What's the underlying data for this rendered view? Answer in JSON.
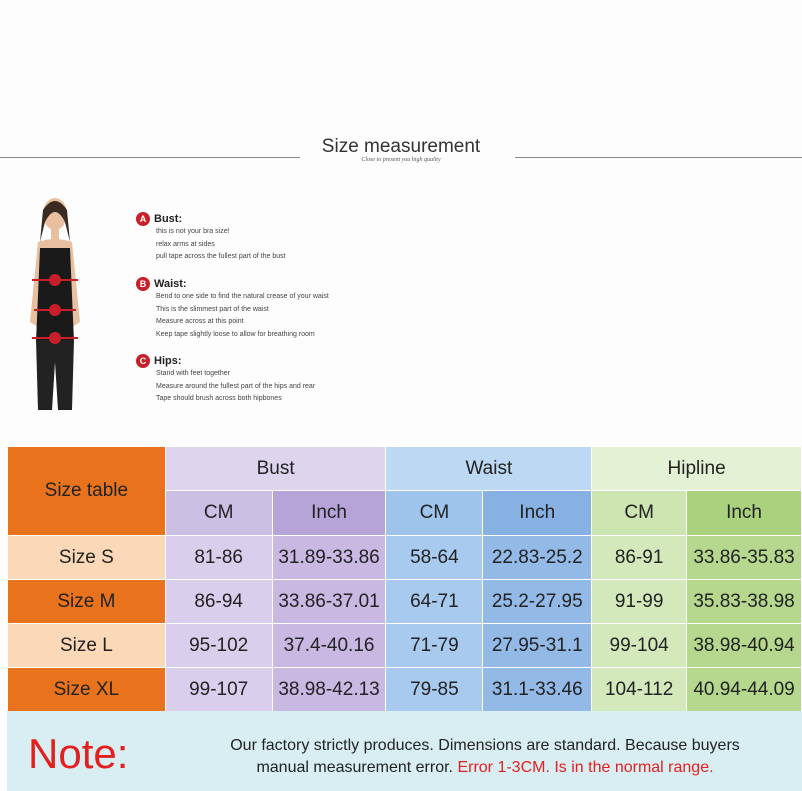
{
  "header": {
    "title": "Size measurement",
    "subtitle": "Close to present you high quality"
  },
  "guide": [
    {
      "badge": "A",
      "title": "Bust:",
      "lines": [
        "this is not your bra size!",
        "relax arms at sides",
        "pull tape across the fullest part of the bust"
      ]
    },
    {
      "badge": "B",
      "title": "Waist:",
      "lines": [
        "Bend  to one side to find the natural crease of your waist",
        "This is the slimmest part of the waist",
        "Measure across at this point",
        "Keep tape slightly loose to allow for breathing room"
      ]
    },
    {
      "badge": "C",
      "title": "Hips:",
      "lines": [
        "Stand with feet together",
        "Measure around the fullest part of the hips and rear",
        "Tape should brush across both hipbones"
      ]
    }
  ],
  "table": {
    "corner": "Size table",
    "groups": [
      "Bust",
      "Waist",
      "Hipline"
    ],
    "units": [
      "CM",
      "Inch",
      "CM",
      "Inch",
      "CM",
      "Inch"
    ],
    "rows": [
      {
        "size": "Size S",
        "values": [
          "81-86",
          "31.89-33.86",
          "58-64",
          "22.83-25.2",
          "86-91",
          "33.86-35.83"
        ]
      },
      {
        "size": "Size M",
        "values": [
          "86-94",
          "33.86-37.01",
          "64-71",
          "25.2-27.95",
          "91-99",
          "35.83-38.98"
        ]
      },
      {
        "size": "Size L",
        "values": [
          "95-102",
          "37.4-40.16",
          "71-79",
          "27.95-31.1",
          "99-104",
          "38.98-40.94"
        ]
      },
      {
        "size": "Size XL",
        "values": [
          "99-107",
          "38.98-42.13",
          "79-85",
          "31.1-33.46",
          "104-112",
          "40.94-44.09"
        ]
      }
    ]
  },
  "note": {
    "label": "Note:",
    "text1": "Our factory strictly produces. Dimensions are standard. Because buyers",
    "text2": "manual measurement error.",
    "text_red": "Error 1-3CM. Is in the normal range."
  },
  "colors": {
    "orange": "#e8731c",
    "peach": "#fbd9b8",
    "red": "#e2201f"
  }
}
